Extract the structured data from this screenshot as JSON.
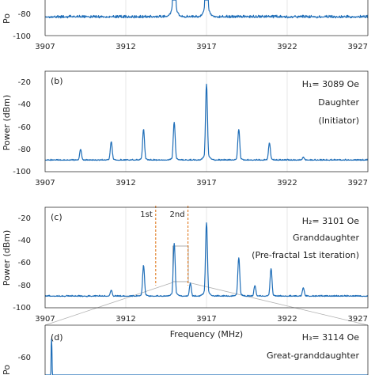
{
  "chart_data": [
    {
      "panel": "",
      "type": "line",
      "xlim": [
        3907,
        3927
      ],
      "ylim": [
        -100,
        -70
      ],
      "x_ticks": [
        "3907",
        "3912",
        "3917",
        "3922",
        "3927"
      ],
      "y_ticks": [
        "-80",
        "-100"
      ],
      "ylabel": "Po",
      "xlabel": "",
      "noise_floor": -90,
      "peaks": [
        {
          "x": 3915.0,
          "y": -20
        },
        {
          "x": 3917.0,
          "y": -20
        }
      ],
      "annotations": []
    },
    {
      "panel": "(b)",
      "type": "line",
      "xlim": [
        3907,
        3927
      ],
      "ylim": [
        -100,
        -10
      ],
      "x_ticks": [
        "3907",
        "3912",
        "3917",
        "3922",
        "3927"
      ],
      "y_ticks": [
        "-20",
        "-40",
        "-60",
        "-80",
        "-100"
      ],
      "ylabel": "Power (dBm)",
      "xlabel": "",
      "noise_floor": -90,
      "peaks": [
        {
          "x": 3909.2,
          "y": -80
        },
        {
          "x": 3911.1,
          "y": -73
        },
        {
          "x": 3913.1,
          "y": -62
        },
        {
          "x": 3915.0,
          "y": -56
        },
        {
          "x": 3917.0,
          "y": -22
        },
        {
          "x": 3919.0,
          "y": -62
        },
        {
          "x": 3920.9,
          "y": -74
        },
        {
          "x": 3923.0,
          "y": -87
        }
      ],
      "annotations": [
        "H₁= 3089 Oe",
        "Daughter",
        "(Initiator)"
      ]
    },
    {
      "panel": "(c)",
      "type": "line",
      "xlim": [
        3907,
        3927
      ],
      "ylim": [
        -100,
        -10
      ],
      "x_ticks": [
        "3907",
        "3912",
        "3917",
        "3922",
        "3927"
      ],
      "y_ticks": [
        "-20",
        "-40",
        "-60",
        "-80",
        "-100"
      ],
      "ylabel": "Power (dBm)",
      "xlabel": "Frequency (MHz)",
      "noise_floor": -90,
      "peaks": [
        {
          "x": 3911.1,
          "y": -84
        },
        {
          "x": 3913.1,
          "y": -62
        },
        {
          "x": 3915.0,
          "y": -42
        },
        {
          "x": 3916.0,
          "y": -78
        },
        {
          "x": 3917.0,
          "y": -24
        },
        {
          "x": 3919.0,
          "y": -55
        },
        {
          "x": 3920.0,
          "y": -80
        },
        {
          "x": 3921.0,
          "y": -65
        },
        {
          "x": 3923.0,
          "y": -82
        }
      ],
      "markers": [
        {
          "x": 3914.0,
          "label": "1st"
        },
        {
          "x": 3916.0,
          "label": "2nd"
        }
      ],
      "annotations": [
        "H₂= 3101 Oe",
        "Granddaughter",
        "(Pre-fractal 1st iteration)"
      ]
    },
    {
      "panel": "(d)",
      "type": "line",
      "xlim": [
        3914.8,
        3915.8
      ],
      "ylim": [
        -70,
        -55
      ],
      "x_ticks": [],
      "y_ticks": [
        "-60"
      ],
      "ylabel": "Po",
      "xlabel": "",
      "noise_floor": -90,
      "peaks": [
        {
          "x": 3914.82,
          "y": -58
        }
      ],
      "annotations": [
        "H₃= 3114 Oe",
        "Great-granddaughter"
      ]
    }
  ]
}
